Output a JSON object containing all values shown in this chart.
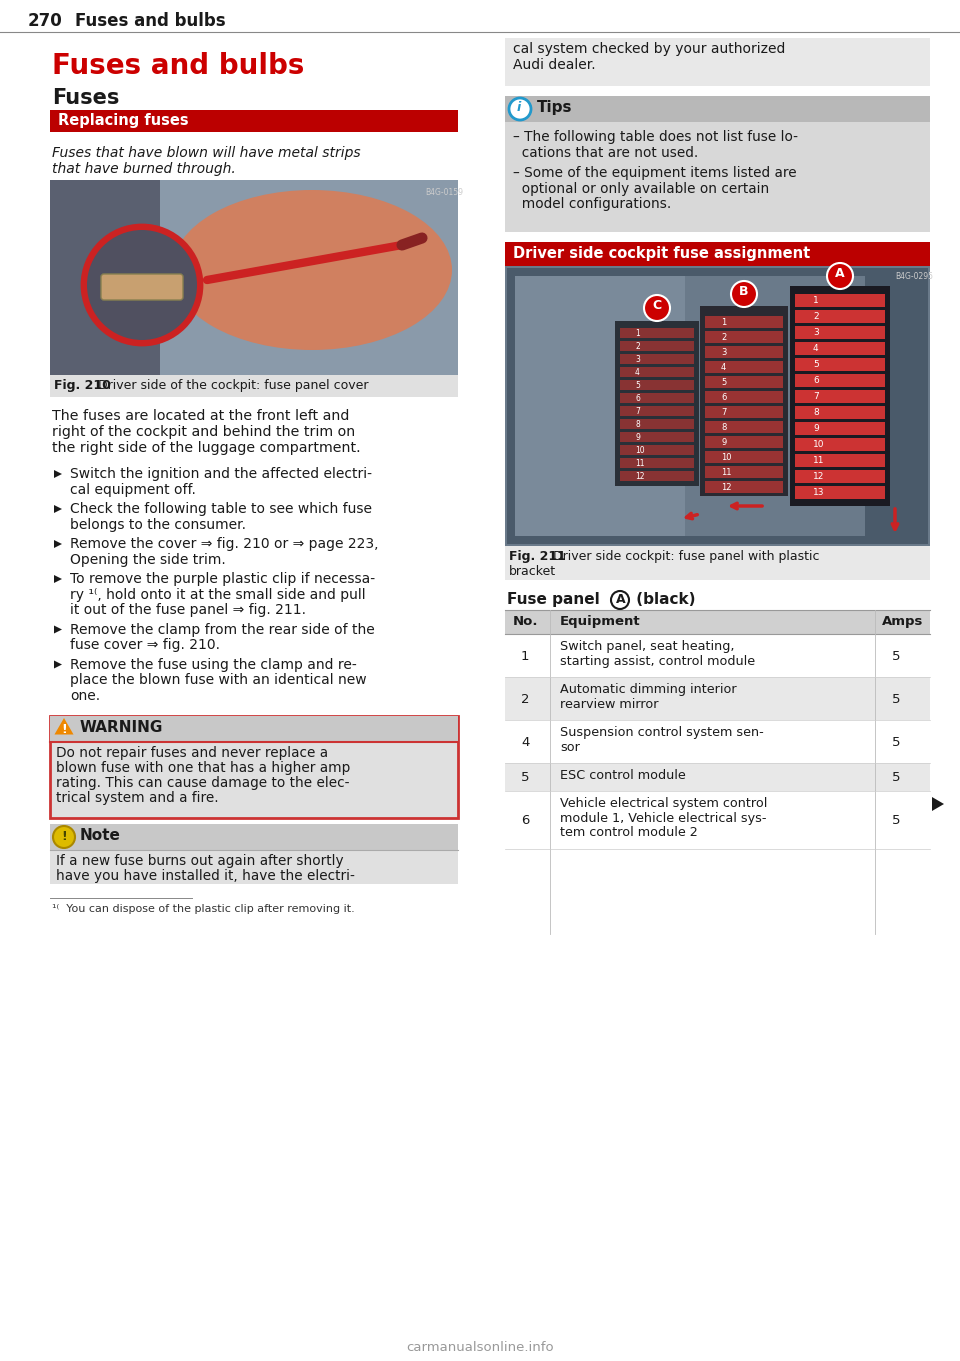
{
  "page_number": "270",
  "page_header": "Fuses and bulbs",
  "background_color": "#ffffff",
  "title_main": "Fuses and bulbs",
  "title_main_color": "#cc0000",
  "title_sub": "Fuses",
  "section_bar_text": "Replacing fuses",
  "section_bar_bg": "#bb0000",
  "section_bar_text_color": "#ffffff",
  "body_italic_text1": "Fuses that have blown will have metal strips",
  "body_italic_text2": "that have burned through.",
  "fig210_caption_bold": "Fig. 210",
  "fig210_caption_rest": "  Driver side of the cockpit: fuse panel cover",
  "fig210_caption_bg": "#e0e0e0",
  "body_para_lines": [
    "The fuses are located at the front left and",
    "right of the cockpit and behind the trim on",
    "the right side of the luggage compartment."
  ],
  "bullet_points": [
    [
      "Switch the ignition and the affected electri-",
      "cal equipment off."
    ],
    [
      "Check the following table to see which fuse",
      "belongs to the consumer."
    ],
    [
      "Remove the cover ⇒ fig. 210 or ⇒ page 223,",
      "Opening the side trim."
    ],
    [
      "To remove the purple plastic clip if necessa-",
      "ry ¹⁽, hold onto it at the small side and pull",
      "it out of the fuse panel ⇒ fig. 211."
    ],
    [
      "Remove the clamp from the rear side of the",
      "fuse cover ⇒ fig. 210."
    ],
    [
      "Remove the fuse using the clamp and re-",
      "place the blown fuse with an identical new",
      "one."
    ]
  ],
  "warning_box_border_color": "#cc3333",
  "warning_box_bg": "#d8d8d8",
  "warning_header_bg": "#c8c8c8",
  "warning_title": "WARNING",
  "warning_text_lines": [
    "Do not repair fuses and never replace a",
    "blown fuse with one that has a higher amp",
    "rating. This can cause damage to the elec-",
    "trical system and a fire."
  ],
  "note_header_bg": "#c8c8c8",
  "note_body_bg": "#e0e0e0",
  "note_title": "Note",
  "note_icon_color": "#ddbb00",
  "note_text_lines": [
    "If a new fuse burns out again after shortly",
    "have you have installed it, have the electri-"
  ],
  "footnote": "¹⁽  You can dispose of the plastic clip after removing it.",
  "right_top_box_bg": "#e8e8e8",
  "right_top_text_lines": [
    "cal system checked by your authorized",
    "Audi dealer."
  ],
  "tips_header_bg": "#b8b8b8",
  "tips_body_bg": "#d8d8d8",
  "tips_title": "Tips",
  "tips_icon_color": "#2299cc",
  "tips_bullets": [
    [
      "– The following table does not list fuse lo-",
      "  cations that are not used."
    ],
    [
      "– Some of the equipment items listed are",
      "  optional or only available on certain",
      "  model configurations."
    ]
  ],
  "driver_bar_text": "Driver side cockpit fuse assignment",
  "driver_bar_bg": "#bb0000",
  "driver_bar_text_color": "#ffffff",
  "fig211_caption_bold": "Fig. 211",
  "fig211_caption_rest": "  Driver side cockpit: fuse panel with plastic",
  "fig211_caption_line2": "bracket",
  "fig211_caption_bg": "#e8e8e8",
  "fuse_table_title_pre": "Fuse panel ",
  "fuse_table_title_circle": "A",
  "fuse_table_title_post": " (black)",
  "fuse_table_header_bg": "#d0d0d0",
  "fuse_table_row_bg_odd": "#ffffff",
  "fuse_table_row_bg_even": "#e8e8e8",
  "fuse_table_rows": [
    {
      "no": "1",
      "eq_lines": [
        "Switch panel, seat heating,",
        "starting assist, control module"
      ],
      "amps": "5",
      "bg": "#ffffff"
    },
    {
      "no": "2",
      "eq_lines": [
        "Automatic dimming interior",
        "rearview mirror"
      ],
      "amps": "5",
      "bg": "#e8e8e8"
    },
    {
      "no": "4",
      "eq_lines": [
        "Suspension control system sen-",
        "sor"
      ],
      "amps": "5",
      "bg": "#ffffff"
    },
    {
      "no": "5",
      "eq_lines": [
        "ESC control module"
      ],
      "amps": "5",
      "bg": "#e8e8e8"
    },
    {
      "no": "6",
      "eq_lines": [
        "Vehicle electrical system control",
        "module 1, Vehicle electrical sys-",
        "tem control module 2"
      ],
      "amps": "5",
      "bg": "#ffffff"
    }
  ],
  "watermark": "carmanualsonline.info",
  "watermark_color": "#999999"
}
